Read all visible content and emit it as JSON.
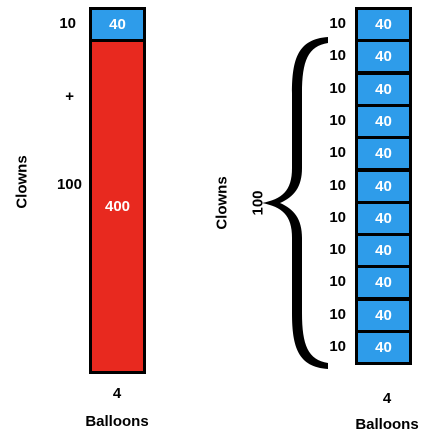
{
  "left": {
    "top_count": "10",
    "plus": "+",
    "big_count": "100",
    "top_box": "40",
    "big_box": "400",
    "y_label": "Clowns",
    "x_value": "4",
    "x_label": "Balloons"
  },
  "right": {
    "y_label": "Clowns",
    "brace_label": "100",
    "rows": [
      {
        "count": "10",
        "value": "40"
      },
      {
        "count": "10",
        "value": "40"
      },
      {
        "count": "10",
        "value": "40"
      },
      {
        "count": "10",
        "value": "40"
      },
      {
        "count": "10",
        "value": "40"
      },
      {
        "count": "10",
        "value": "40"
      },
      {
        "count": "10",
        "value": "40"
      },
      {
        "count": "10",
        "value": "40"
      },
      {
        "count": "10",
        "value": "40"
      },
      {
        "count": "10",
        "value": "40"
      },
      {
        "count": "10",
        "value": "40"
      }
    ],
    "x_value": "4",
    "x_label": "Balloons"
  },
  "colors": {
    "blue": "#2e9cea",
    "red": "#e8291f",
    "border": "#000000"
  }
}
